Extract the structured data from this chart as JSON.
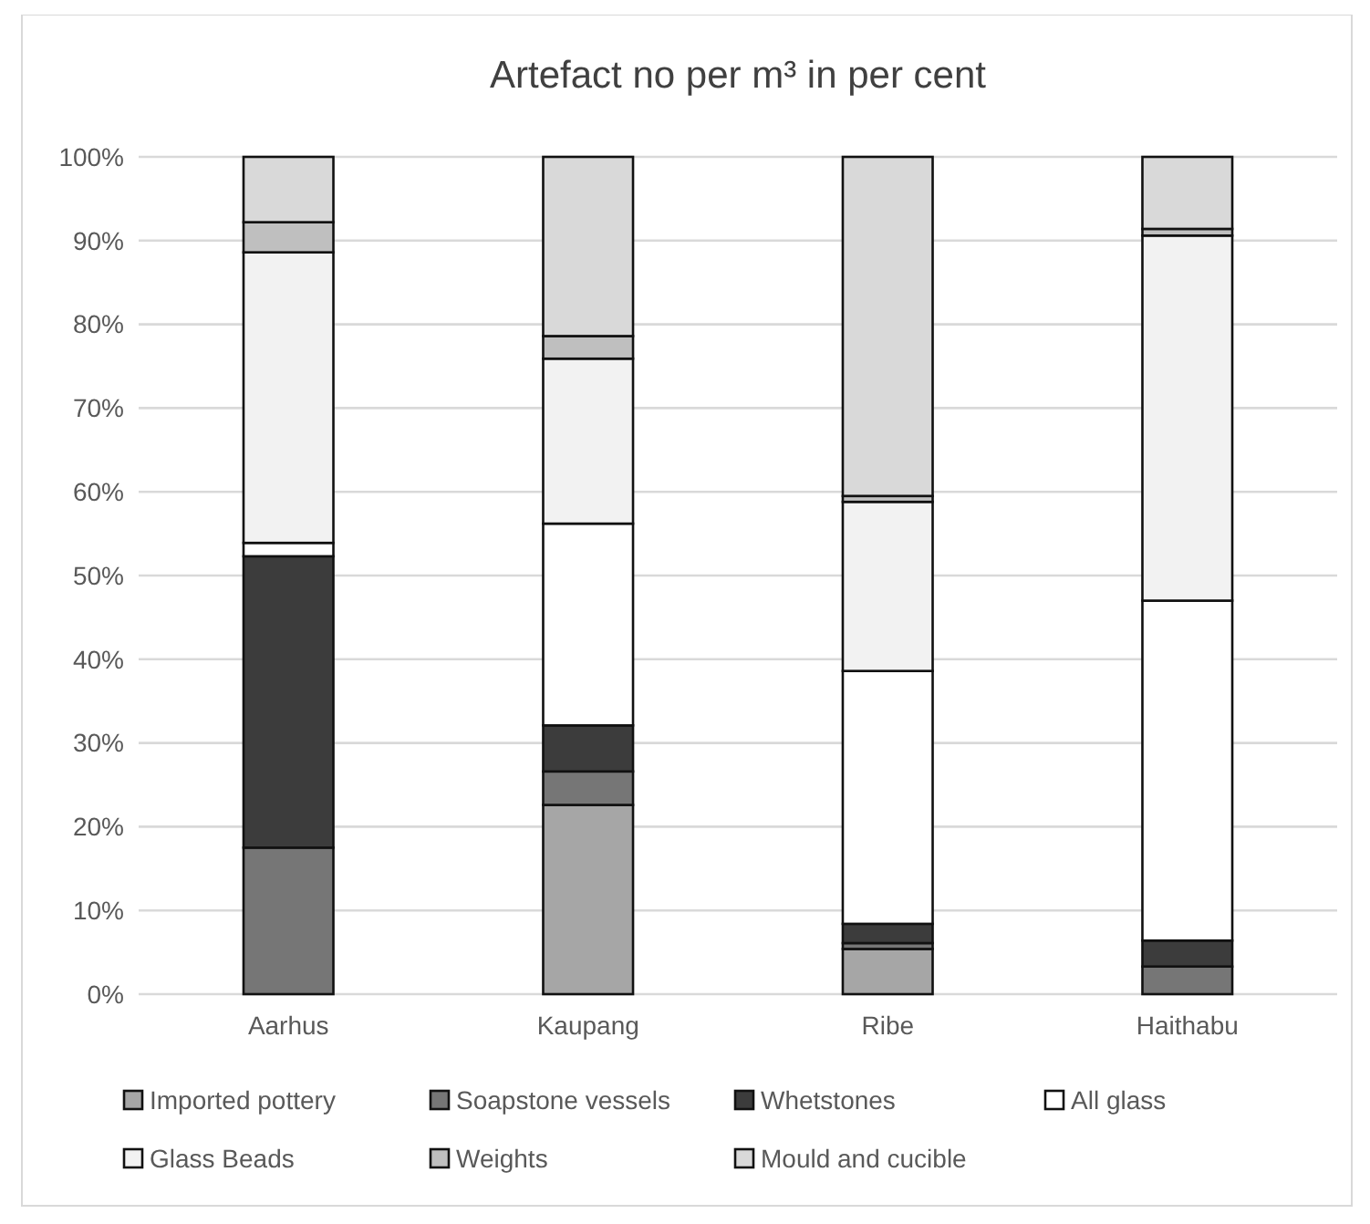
{
  "chart_data": {
    "type": "bar",
    "title": "Artefact no per m³ in per cent",
    "stacked": true,
    "categories": [
      "Aarhus",
      "Kaupang",
      "Ribe",
      "Haithabu"
    ],
    "series": [
      {
        "name": "Imported pottery",
        "color": "#a6a6a6",
        "values": [
          0,
          22.6,
          5.4,
          0
        ]
      },
      {
        "name": "Soapstone vessels",
        "color": "#767676",
        "values": [
          17.5,
          4.0,
          0.7,
          3.3
        ]
      },
      {
        "name": "Whetstones",
        "color": "#3c3c3c",
        "values": [
          34.8,
          5.5,
          2.3,
          3.1
        ]
      },
      {
        "name": "All glass",
        "color": "#ffffff",
        "values": [
          1.6,
          24.1,
          30.2,
          40.6
        ]
      },
      {
        "name": "Glass Beads",
        "color": "#f2f2f2",
        "values": [
          34.7,
          19.7,
          20.2,
          43.6
        ]
      },
      {
        "name": "Weights",
        "color": "#bfbfbf",
        "values": [
          3.6,
          2.7,
          0.7,
          0.8
        ]
      },
      {
        "name": "Mould and cucible",
        "color": "#d9d9d9",
        "values": [
          7.8,
          21.4,
          40.5,
          8.6
        ]
      }
    ],
    "ylim": [
      0,
      100
    ],
    "yticks": [
      {
        "value": 0,
        "label": "0%"
      },
      {
        "value": 10,
        "label": "10%"
      },
      {
        "value": 20,
        "label": "20%"
      },
      {
        "value": 30,
        "label": "30%"
      },
      {
        "value": 40,
        "label": "40%"
      },
      {
        "value": 50,
        "label": "50%"
      },
      {
        "value": 60,
        "label": "60%"
      },
      {
        "value": 70,
        "label": "70%"
      },
      {
        "value": 80,
        "label": "80%"
      },
      {
        "value": 90,
        "label": "90%"
      },
      {
        "value": 100,
        "label": "100%"
      }
    ],
    "grid": "y",
    "legend": "bottom"
  }
}
